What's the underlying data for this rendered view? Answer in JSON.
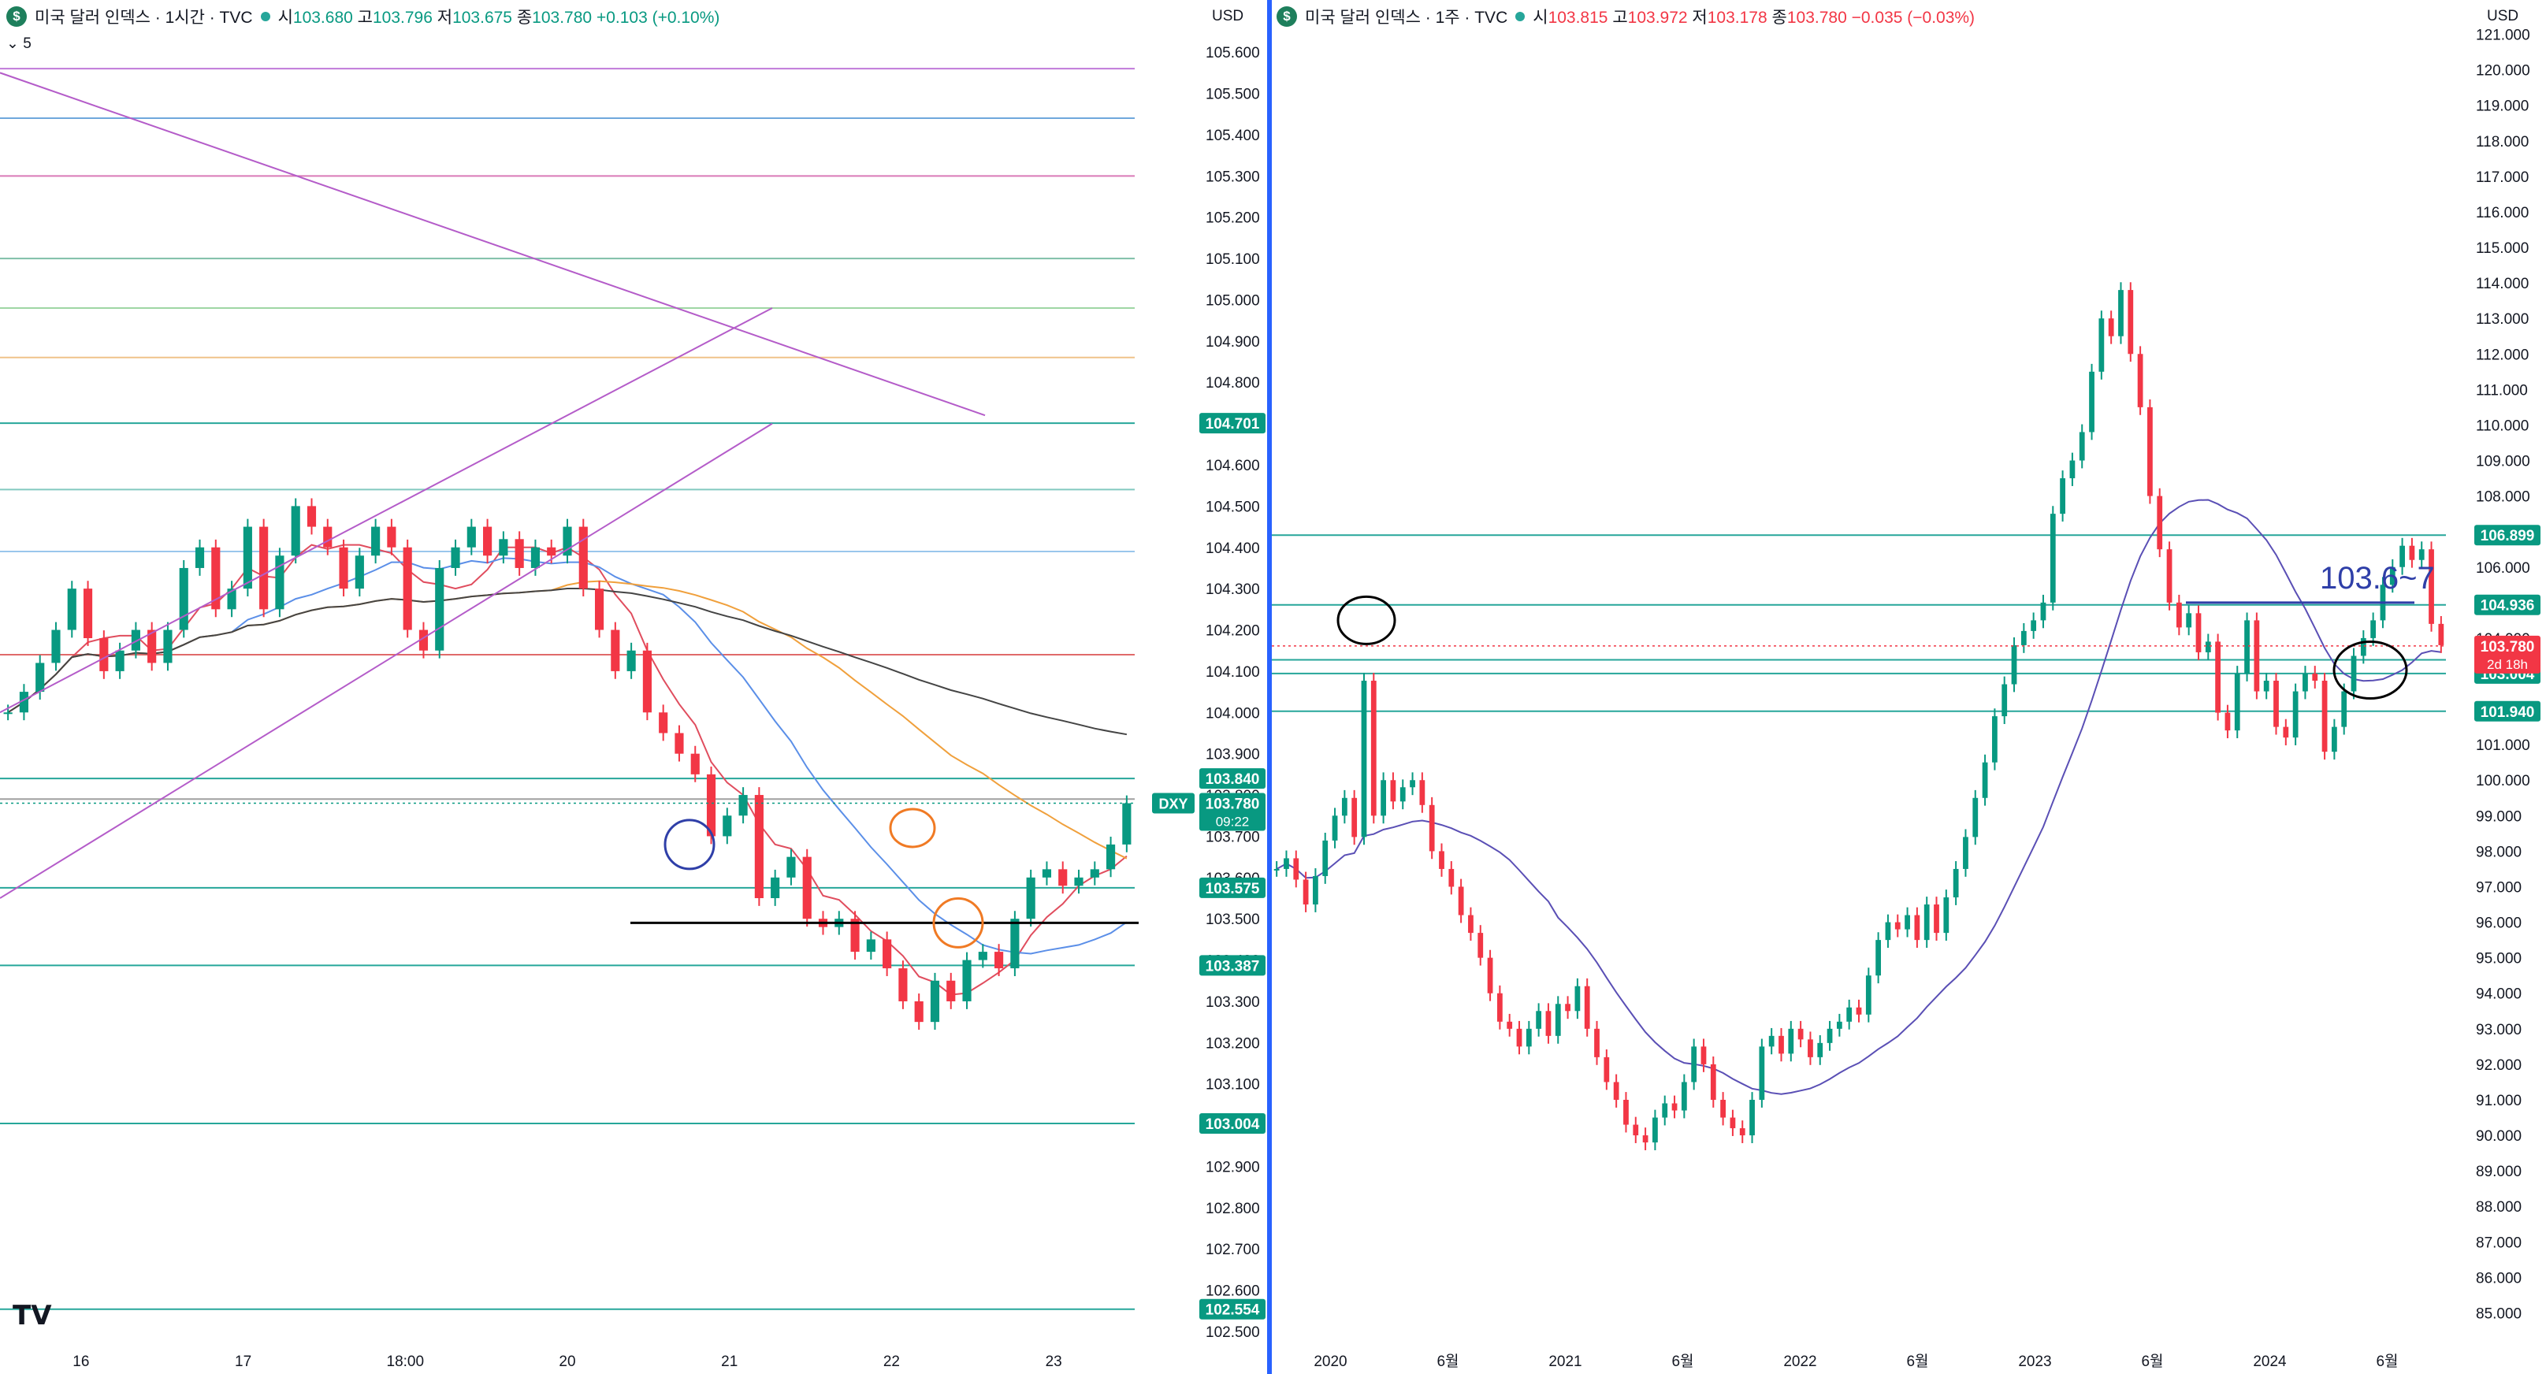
{
  "left": {
    "title": "미국 달러 인덱스 · 1시간 · TVC",
    "ohlc": [
      {
        "label": "시",
        "value": "103.680"
      },
      {
        "label": "고",
        "value": "103.796"
      },
      {
        "label": "저",
        "value": "103.675"
      },
      {
        "label": "종",
        "value": "103.780"
      }
    ],
    "change": "+0.103 (+0.10%)",
    "indicator_value": "5",
    "currency": "USD",
    "y_ticks": [
      "105.600",
      "105.500",
      "105.400",
      "105.300",
      "105.200",
      "105.100",
      "105.000",
      "104.900",
      "104.800",
      "104.700",
      "104.600",
      "104.500",
      "104.400",
      "104.300",
      "104.200",
      "104.100",
      "104.000",
      "103.900",
      "103.800",
      "103.700",
      "103.600",
      "103.500",
      "103.400",
      "103.300",
      "103.200",
      "103.100",
      "103.000",
      "102.900",
      "102.800",
      "102.700",
      "102.600",
      "102.500"
    ],
    "x_ticks": [
      "16",
      "17",
      "18:00",
      "20",
      "21",
      "22",
      "23"
    ],
    "price_tags": [
      {
        "value": "104.701",
        "color": "#089981"
      },
      {
        "value": "103.840",
        "color": "#089981"
      },
      {
        "value": "103.575",
        "color": "#089981"
      },
      {
        "value": "103.387",
        "color": "#089981"
      },
      {
        "value": "103.004",
        "color": "#089981"
      },
      {
        "value": "102.554",
        "color": "#089981"
      }
    ],
    "current_price": {
      "symbol": "DXY",
      "value": "103.780",
      "countdown": "09:22",
      "color": "#089981"
    }
  },
  "right": {
    "title": "미국 달러 인덱스 · 1주 · TVC",
    "ohlc": [
      {
        "label": "시",
        "value": "103.815"
      },
      {
        "label": "고",
        "value": "103.972"
      },
      {
        "label": "저",
        "value": "103.178"
      },
      {
        "label": "종",
        "value": "103.780"
      }
    ],
    "change": "−0.035 (−0.03%)",
    "currency": "USD",
    "y_ticks": [
      "121.000",
      "120.000",
      "119.000",
      "118.000",
      "117.000",
      "116.000",
      "115.000",
      "114.000",
      "113.000",
      "112.000",
      "111.000",
      "110.000",
      "109.000",
      "108.000",
      "107.000",
      "106.000",
      "105.000",
      "104.000",
      "103.000",
      "102.000",
      "101.000",
      "100.000",
      "99.000",
      "98.000",
      "97.000",
      "96.000",
      "95.000",
      "94.000",
      "93.000",
      "92.000",
      "91.000",
      "90.000",
      "89.000",
      "88.000",
      "87.000",
      "86.000",
      "85.000"
    ],
    "x_ticks": [
      "2020",
      "6월",
      "2021",
      "6월",
      "2022",
      "6월",
      "2023",
      "6월",
      "2024",
      "6월"
    ],
    "price_tags": [
      {
        "value": "106.899",
        "color": "#089981"
      },
      {
        "value": "104.936",
        "color": "#089981"
      },
      {
        "value": "103.387",
        "color": "#089981"
      },
      {
        "value": "103.004",
        "color": "#089981"
      },
      {
        "value": "101.940",
        "color": "#089981"
      }
    ],
    "current_price": {
      "value": "103.780",
      "countdown": "2d 18h",
      "color": "#f23645"
    },
    "annotation": "103.6~7"
  },
  "chart_data": [
    {
      "type": "candlestick",
      "title": "미국 달러 인덱스 · 1시간 · TVC",
      "ylim": [
        102.5,
        105.65
      ],
      "x_labels": [
        "16",
        "17",
        "18:00",
        "20",
        "21",
        "22",
        "23"
      ],
      "horizontal_levels": [
        104.701,
        103.84,
        103.575,
        103.387,
        103.004,
        102.554,
        105.56,
        105.44,
        105.3,
        105.1,
        104.98,
        104.86,
        104.54,
        104.39,
        104.14,
        103.79
      ],
      "close_series": [
        104.0,
        104.05,
        104.12,
        104.2,
        104.3,
        104.18,
        104.1,
        104.15,
        104.2,
        104.12,
        104.2,
        104.35,
        104.4,
        104.25,
        104.3,
        104.45,
        104.25,
        104.38,
        104.5,
        104.45,
        104.4,
        104.3,
        104.38,
        104.45,
        104.4,
        104.2,
        104.15,
        104.35,
        104.4,
        104.45,
        104.38,
        104.42,
        104.35,
        104.4,
        104.38,
        104.45,
        104.3,
        104.2,
        104.1,
        104.15,
        104.0,
        103.95,
        103.9,
        103.85,
        103.7,
        103.75,
        103.8,
        103.55,
        103.6,
        103.65,
        103.5,
        103.48,
        103.5,
        103.42,
        103.45,
        103.38,
        103.3,
        103.25,
        103.35,
        103.3,
        103.4,
        103.42,
        103.38,
        103.5,
        103.6,
        103.62,
        103.58,
        103.6,
        103.62,
        103.68,
        103.78
      ]
    },
    {
      "type": "candlestick",
      "title": "미국 달러 인덱스 · 1주 · TVC",
      "ylim": [
        84.7,
        121.3
      ],
      "x_labels": [
        "2020",
        "6월",
        "2021",
        "6월",
        "2022",
        "6월",
        "2023",
        "6월",
        "2024",
        "6월"
      ],
      "horizontal_levels": [
        106.899,
        104.936,
        103.387,
        103.004,
        101.94
      ],
      "close_series": [
        97.5,
        97.8,
        97.2,
        96.5,
        97.3,
        98.3,
        99.0,
        99.5,
        98.4,
        102.8,
        99.0,
        100.0,
        99.4,
        99.8,
        100.0,
        99.3,
        98.0,
        97.5,
        97.0,
        96.2,
        95.7,
        95.0,
        94.0,
        93.2,
        93.0,
        92.5,
        93.0,
        93.5,
        92.8,
        93.7,
        93.5,
        94.2,
        93.0,
        92.2,
        91.5,
        91.0,
        90.3,
        90.0,
        89.8,
        90.5,
        90.9,
        90.7,
        91.5,
        92.5,
        92.0,
        91.0,
        90.5,
        90.2,
        90.0,
        91.0,
        92.5,
        92.8,
        92.3,
        93.0,
        92.7,
        92.2,
        92.6,
        93.0,
        93.2,
        93.6,
        93.4,
        94.5,
        95.5,
        96.0,
        95.8,
        96.2,
        95.5,
        96.5,
        95.7,
        96.7,
        97.5,
        98.4,
        99.5,
        100.5,
        101.8,
        102.7,
        103.8,
        104.2,
        104.5,
        105.0,
        107.5,
        108.5,
        109.0,
        109.8,
        111.5,
        113.0,
        112.5,
        113.8,
        112.0,
        110.5,
        108.0,
        106.5,
        105.0,
        104.3,
        104.7,
        103.6,
        103.9,
        101.9,
        101.4,
        103.0,
        104.5,
        102.5,
        102.8,
        101.5,
        101.2,
        102.5,
        103.0,
        102.8,
        100.8,
        101.5,
        102.5,
        103.5,
        104.0,
        104.5,
        105.5,
        106.0,
        106.6,
        106.2,
        106.5,
        104.4,
        103.8
      ]
    }
  ]
}
